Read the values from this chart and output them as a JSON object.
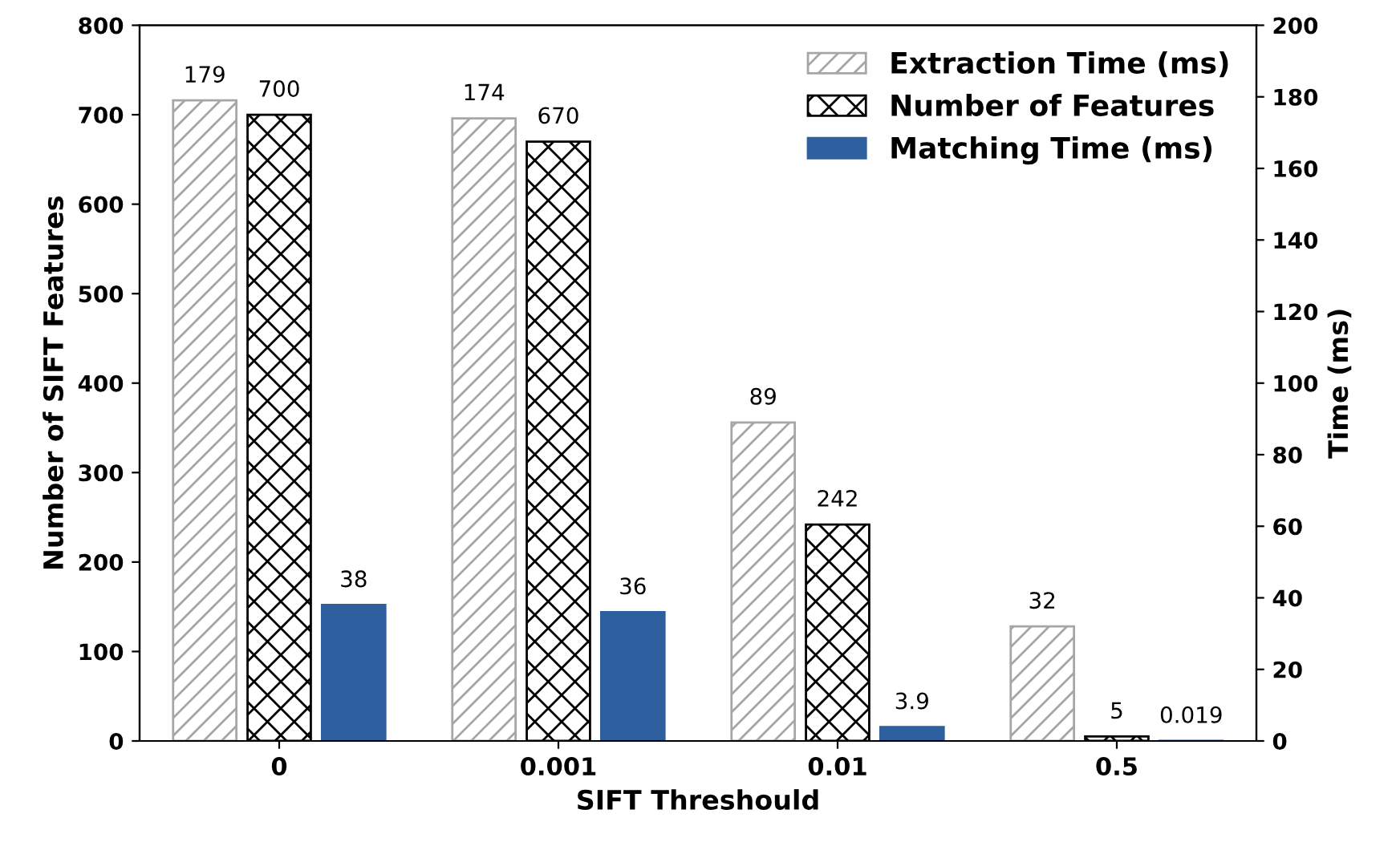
{
  "chart_data": {
    "type": "bar",
    "categories": [
      "0",
      "0.001",
      "0.01",
      "0.5"
    ],
    "xlabel": "SIFT Threshould",
    "ylabel": "Number of SIFT Features",
    "y2label": "Time (ms)",
    "series": [
      {
        "name": "Extraction Time (ms)",
        "color": "#a6a6a6",
        "values": [
          179,
          174,
          89,
          32
        ],
        "axis": "y2"
      },
      {
        "name": "Number of Features",
        "color": "#000000",
        "values": [
          700,
          670,
          242,
          5
        ],
        "axis": "y"
      },
      {
        "name": "Matching Time (ms)",
        "color": "#2e5f9e",
        "values": [
          38,
          36,
          3.9,
          0.019
        ],
        "axis": "y2"
      }
    ],
    "ylim": [
      0,
      800
    ],
    "yticks": [
      0,
      100,
      200,
      300,
      400,
      500,
      600,
      700,
      800
    ],
    "y2lim": [
      0,
      200
    ],
    "y2ticks": [
      0,
      20,
      40,
      60,
      80,
      100,
      120,
      140,
      160,
      180,
      200
    ],
    "data_labels": true,
    "legend": "top right",
    "grid": false
  }
}
